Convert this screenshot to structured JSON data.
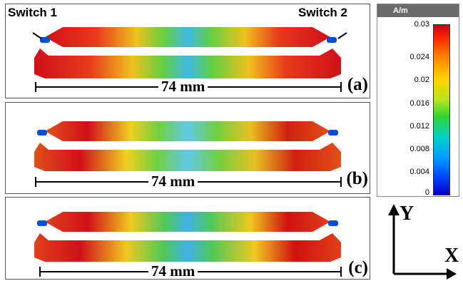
{
  "switches": {
    "left": "Switch 1",
    "right": "Switch 2"
  },
  "panels": [
    {
      "label": "(a)",
      "dimension": "74 mm"
    },
    {
      "label": "(b)",
      "dimension": "74 mm"
    },
    {
      "label": "(c)",
      "dimension": "74 mm"
    }
  ],
  "legend": {
    "unit": "A/m",
    "ticks": [
      "0.03",
      "0.024",
      "0.02",
      "0.016",
      "0.012",
      "0.008",
      "0.004",
      "0"
    ]
  },
  "axes": {
    "y": "Y",
    "x": "X"
  },
  "colors": {
    "max": "#c8001a",
    "mid": "#32d232",
    "min": "#0000c8"
  }
}
